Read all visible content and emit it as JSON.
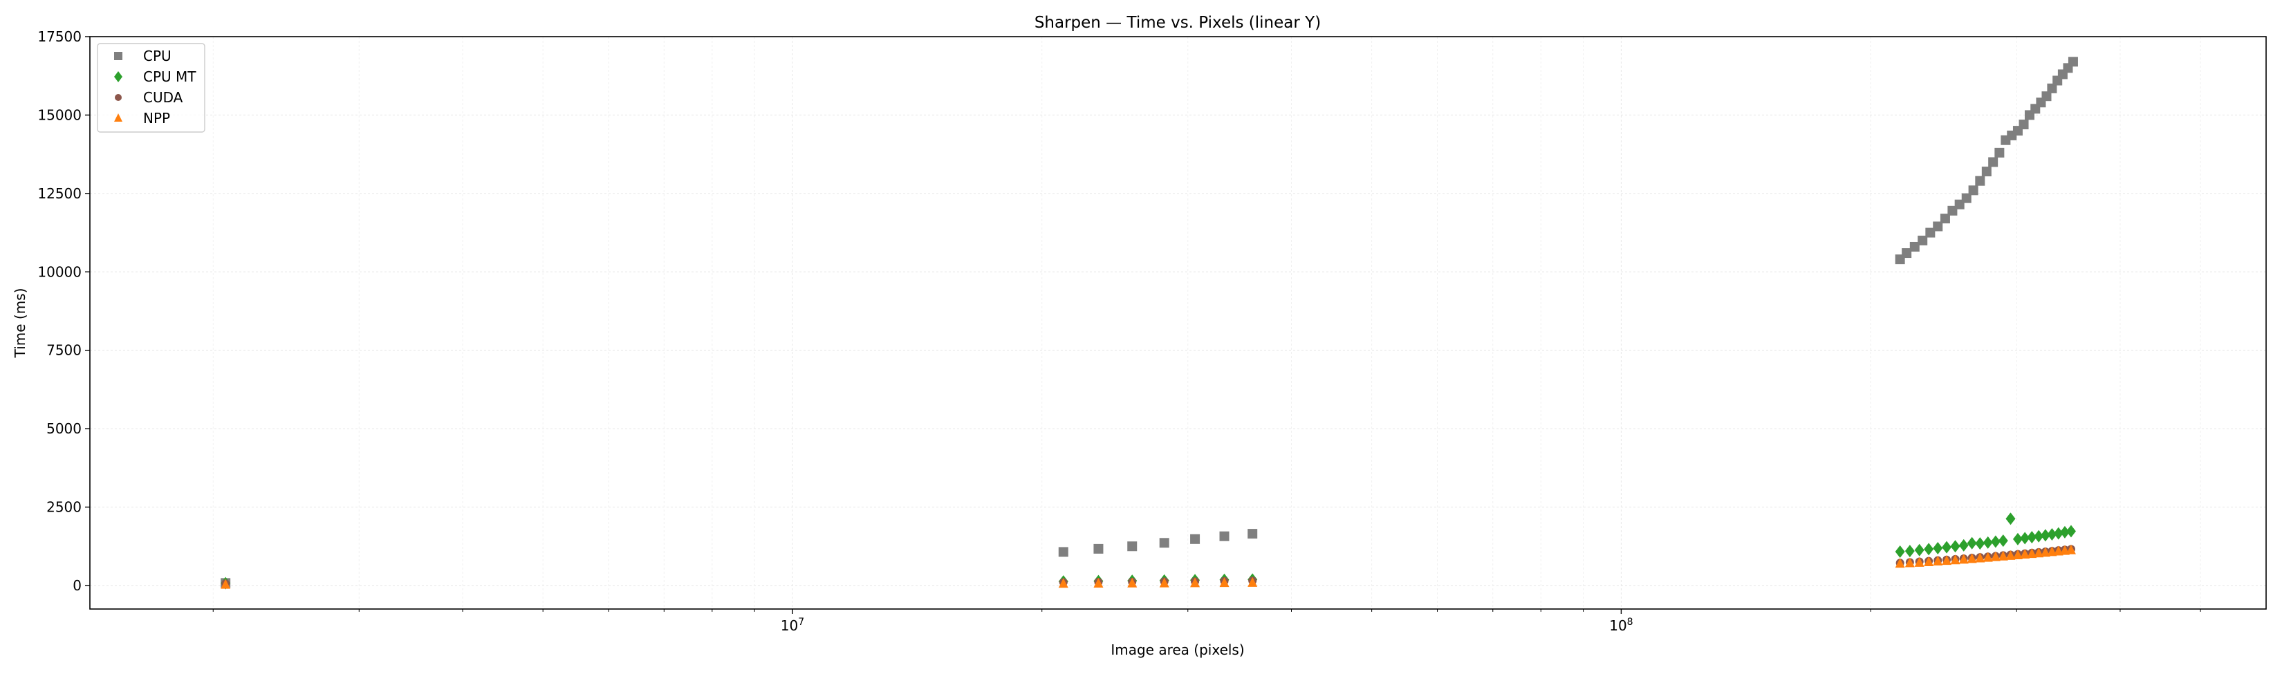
{
  "chart_data": {
    "type": "scatter",
    "title": "Sharpen — Time vs. Pixels (linear Y)",
    "xlabel": "Image area (pixels)",
    "ylabel": "Time (ms)",
    "xscale": "log",
    "xlim": [
      1420000,
      600000000
    ],
    "ylim": [
      -750,
      17500
    ],
    "grid": true,
    "legend_position": "upper-left",
    "x_major_ticks": [
      10000000,
      100000000
    ],
    "x_major_tick_labels": [
      "10^7",
      "10^8"
    ],
    "x_minor_ticks": [
      2000000,
      3000000,
      4000000,
      5000000,
      6000000,
      7000000,
      8000000,
      9000000,
      20000000,
      30000000,
      40000000,
      50000000,
      60000000,
      70000000,
      80000000,
      90000000,
      200000000,
      300000000,
      400000000,
      500000000
    ],
    "y_ticks": [
      0,
      2500,
      5000,
      7500,
      10000,
      12500,
      15000,
      17500
    ],
    "y_tick_labels": [
      "0",
      "2500",
      "5000",
      "7500",
      "10000",
      "12500",
      "15000",
      "17500"
    ],
    "series": [
      {
        "name": "CPU",
        "marker": "square",
        "color": "#7f7f7f",
        "x": [
          2070000,
          21230000,
          23400000,
          25700000,
          28100000,
          30600000,
          33200000,
          35900000,
          217000000,
          221000000,
          226000000,
          231000000,
          236000000,
          241000000,
          246000000,
          251000000,
          256000000,
          261000000,
          266000000,
          271000000,
          276000000,
          281000000,
          286000000,
          291000000,
          296000000,
          301000000,
          306000000,
          311000000,
          316000000,
          321000000,
          326000000,
          331000000,
          336000000,
          341000000,
          346000000,
          351000000
        ],
        "y": [
          80,
          1070,
          1170,
          1250,
          1360,
          1480,
          1570,
          1650,
          10400,
          10600,
          10800,
          11000,
          11250,
          11450,
          11700,
          11950,
          12150,
          12350,
          12600,
          12900,
          13200,
          13500,
          13800,
          14200,
          14350,
          14500,
          14700,
          15000,
          15200,
          15400,
          15600,
          15850,
          16100,
          16300,
          16500,
          16700
        ]
      },
      {
        "name": "CPU MT",
        "marker": "diamond",
        "color": "#2ca02c",
        "x": [
          2070000,
          21230000,
          23400000,
          25700000,
          28100000,
          30600000,
          33200000,
          35900000,
          217000000,
          223000000,
          229000000,
          235000000,
          241000000,
          247000000,
          253000000,
          259000000,
          265000000,
          271000000,
          277000000,
          283000000,
          289000000,
          295000000,
          301000000,
          307000000,
          313000000,
          319000000,
          325000000,
          331000000,
          337000000,
          343000000,
          349000000
        ],
        "y": [
          75,
          130,
          140,
          150,
          160,
          170,
          180,
          190,
          1080,
          1100,
          1130,
          1160,
          1190,
          1220,
          1250,
          1280,
          1350,
          1340,
          1370,
          1400,
          1430,
          2130,
          1480,
          1510,
          1540,
          1570,
          1600,
          1630,
          1660,
          1700,
          1730
        ]
      },
      {
        "name": "CUDA",
        "marker": "circle",
        "color": "#8c564b",
        "x": [
          2070000,
          21230000,
          23400000,
          25700000,
          28100000,
          30600000,
          33200000,
          35900000,
          217000000,
          223000000,
          229000000,
          235000000,
          241000000,
          247000000,
          253000000,
          259000000,
          265000000,
          271000000,
          277000000,
          283000000,
          289000000,
          295000000,
          301000000,
          307000000,
          313000000,
          319000000,
          325000000,
          331000000,
          337000000,
          343000000,
          349000000
        ],
        "y": [
          60,
          100,
          110,
          115,
          125,
          130,
          140,
          150,
          720,
          740,
          760,
          780,
          800,
          820,
          840,
          860,
          880,
          900,
          920,
          940,
          960,
          980,
          1000,
          1020,
          1040,
          1060,
          1080,
          1100,
          1120,
          1140,
          1160
        ]
      },
      {
        "name": "NPP",
        "marker": "triangle",
        "color": "#ff7f0e",
        "x": [
          2070000,
          21230000,
          23400000,
          25700000,
          28100000,
          30600000,
          33200000,
          35900000,
          217000000,
          223000000,
          229000000,
          235000000,
          241000000,
          247000000,
          253000000,
          259000000,
          265000000,
          271000000,
          277000000,
          283000000,
          289000000,
          295000000,
          301000000,
          307000000,
          313000000,
          319000000,
          325000000,
          331000000,
          337000000,
          343000000,
          349000000
        ],
        "y": [
          30,
          60,
          65,
          70,
          75,
          80,
          85,
          90,
          700,
          715,
          730,
          750,
          770,
          790,
          810,
          830,
          850,
          870,
          890,
          910,
          930,
          950,
          970,
          990,
          1010,
          1030,
          1050,
          1070,
          1090,
          1110,
          1130
        ]
      }
    ]
  }
}
